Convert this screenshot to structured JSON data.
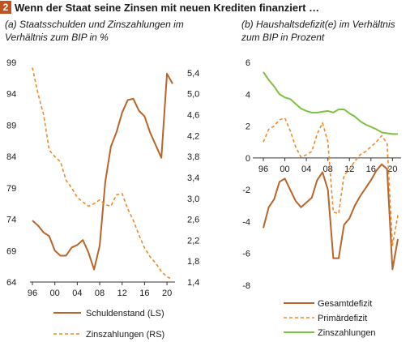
{
  "figure": {
    "number": "2",
    "title": "Wenn der Staat seine Zinsen mit neuen Krediten finanziert …"
  },
  "panels": [
    {
      "subtitle_1": "(a) Staatsschulden und Zinszahlungen im",
      "subtitle_2": "Verhältnis zum BIP in %"
    },
    {
      "subtitle_1": "(b) Haushaltsdefizit(e) im Verhältnis",
      "subtitle_2": "zum BIP in Prozent"
    }
  ],
  "colors": {
    "debt": "#b8642a",
    "interest_a": "#f0892a",
    "total": "#b8642a",
    "primary": "#f0892a",
    "interest_b": "#7cc242",
    "badge": "#c0531f"
  },
  "chart_data": [
    {
      "type": "line",
      "x": [
        1996,
        1997,
        1998,
        1999,
        2000,
        2001,
        2002,
        2003,
        2004,
        2005,
        2006,
        2007,
        2008,
        2009,
        2010,
        2011,
        2012,
        2013,
        2014,
        2015,
        2016,
        2017,
        2018,
        2019,
        2020,
        2021
      ],
      "xticks": [
        "96",
        "00",
        "04",
        "08",
        "12",
        "16",
        "20"
      ],
      "ylim_left": [
        64,
        99
      ],
      "yticks_left": [
        "99",
        "94",
        "89",
        "84",
        "79",
        "74",
        "69",
        "64"
      ],
      "ylim_right": [
        1.4,
        5.6
      ],
      "yticks_right": [
        "5,4",
        "5,0",
        "4,6",
        "4,2",
        "3,8",
        "3,4",
        "3,0",
        "2,6",
        "2,2",
        "1,8",
        "1,4"
      ],
      "series": [
        {
          "name": "Schuldenstand (LS)",
          "axis": "left",
          "values": [
            73.8,
            73.0,
            71.9,
            71.3,
            69.0,
            68.2,
            68.2,
            69.5,
            69.9,
            70.7,
            68.7,
            66.0,
            69.8,
            80.0,
            85.6,
            87.9,
            91.0,
            93.0,
            93.2,
            91.3,
            90.4,
            87.8,
            85.8,
            83.8,
            97.2,
            95.6
          ]
        },
        {
          "name": "Zinszahlungen (RS)",
          "axis": "right",
          "values": [
            5.5,
            5.0,
            4.6,
            3.92,
            3.8,
            3.7,
            3.35,
            3.2,
            3.02,
            2.93,
            2.85,
            2.9,
            2.97,
            2.88,
            2.85,
            3.07,
            3.09,
            2.8,
            2.58,
            2.3,
            2.05,
            1.88,
            1.76,
            1.6,
            1.5,
            1.45
          ]
        }
      ]
    },
    {
      "type": "line",
      "x": [
        1996,
        1997,
        1998,
        1999,
        2000,
        2001,
        2002,
        2003,
        2004,
        2005,
        2006,
        2007,
        2008,
        2009,
        2010,
        2011,
        2012,
        2013,
        2014,
        2015,
        2016,
        2017,
        2018,
        2019,
        2020,
        2021
      ],
      "xticks": [
        "96",
        "00",
        "04",
        "08",
        "12",
        "16",
        "20"
      ],
      "ylim": [
        -8,
        6
      ],
      "yticks": [
        "6",
        "4",
        "2",
        "0",
        "-2",
        "-4",
        "-6",
        "-8"
      ],
      "series": [
        {
          "name": "Gesamtdefizit",
          "values": [
            -4.4,
            -3.1,
            -2.6,
            -1.5,
            -1.3,
            -2.0,
            -2.7,
            -3.1,
            -2.8,
            -2.5,
            -1.4,
            -0.9,
            -2.0,
            -6.3,
            -6.3,
            -4.2,
            -3.8,
            -3.0,
            -2.4,
            -1.9,
            -1.4,
            -0.8,
            -0.4,
            -0.7,
            -7.0,
            -5.1
          ]
        },
        {
          "name": "Primärdefizit",
          "values": [
            1.0,
            1.8,
            2.0,
            2.4,
            2.5,
            1.7,
            0.7,
            0.05,
            0.2,
            0.4,
            1.5,
            2.2,
            1.0,
            -3.4,
            -3.5,
            -1.1,
            -0.7,
            -0.2,
            0.2,
            0.4,
            0.7,
            1.0,
            1.4,
            0.9,
            -5.5,
            -3.6
          ]
        },
        {
          "name": "Zinszahlungen",
          "values": [
            5.4,
            4.9,
            4.5,
            4.0,
            3.8,
            3.7,
            3.4,
            3.1,
            2.95,
            2.85,
            2.85,
            2.9,
            2.95,
            2.85,
            3.05,
            3.05,
            2.8,
            2.6,
            2.3,
            2.1,
            1.95,
            1.8,
            1.6,
            1.55,
            1.5,
            1.5
          ]
        }
      ]
    }
  ]
}
